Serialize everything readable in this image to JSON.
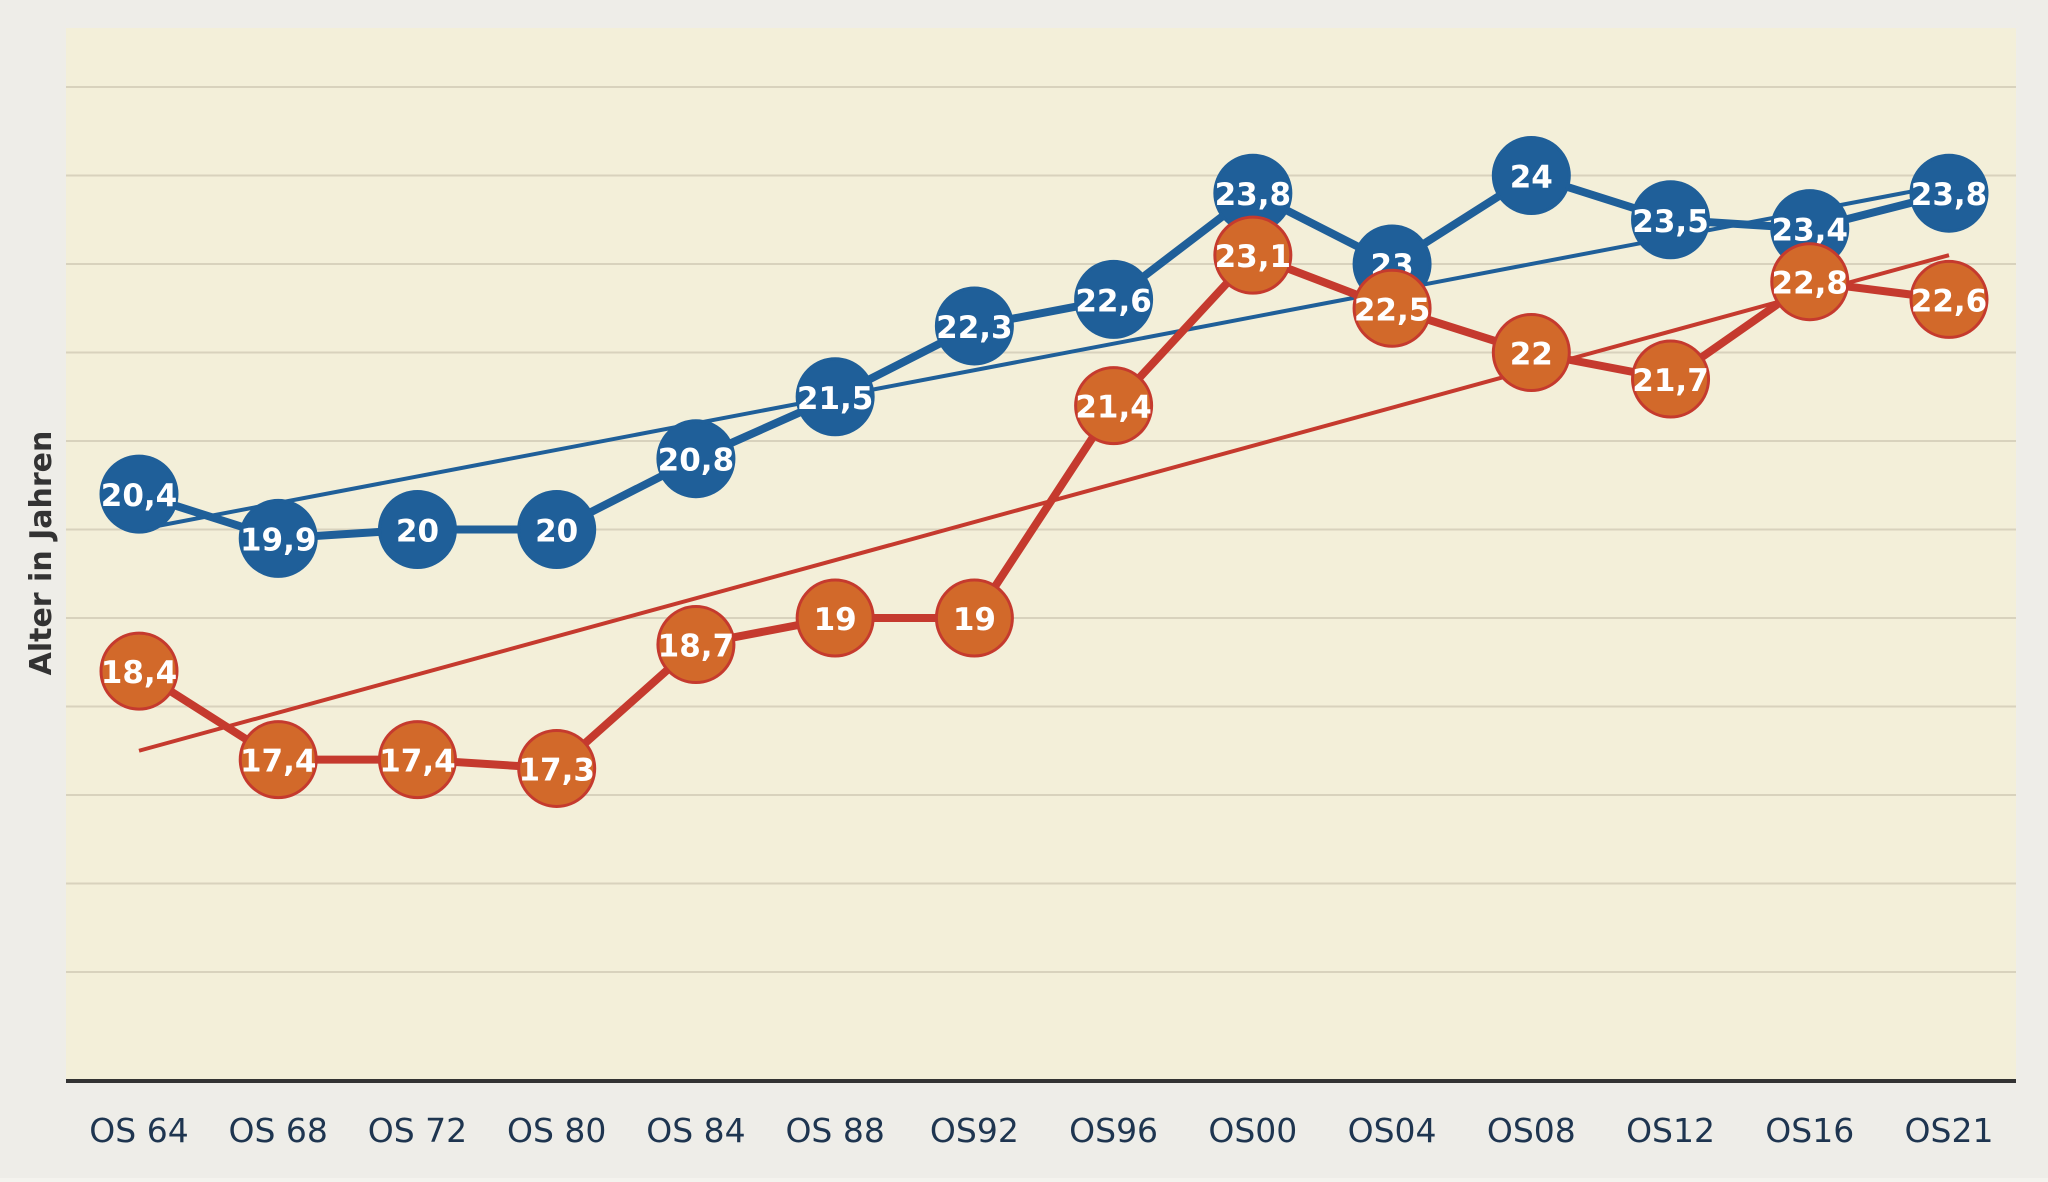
{
  "chart_data": {
    "type": "line",
    "title": "",
    "xlabel": "",
    "ylabel": "Alter in Jahren",
    "categories": [
      "OS 64",
      "OS 68",
      "OS 72",
      "OS 80",
      "OS 84",
      "OS 88",
      "OS92",
      "OS96",
      "OS00",
      "OS04",
      "OS08",
      "OS12",
      "OS16",
      "OS21"
    ],
    "ylim": [
      15,
      25
    ],
    "grid": true,
    "legend": "none",
    "series": [
      {
        "color": "#1f5f99",
        "values": [
          20.4,
          19.9,
          20,
          20,
          20.8,
          21.5,
          22.3,
          22.6,
          23.8,
          23,
          24,
          23.5,
          23.4,
          23.8
        ],
        "labels": [
          "20,4",
          "19,9",
          "20",
          "20",
          "20,8",
          "21,5",
          "22,3",
          "22,6",
          "23,8",
          "23",
          "24",
          "23,5",
          "23,4",
          "23,8"
        ],
        "trend": [
          20.0,
          23.9
        ]
      },
      {
        "color": "#d2692a",
        "line_color": "#c53a2e",
        "values": [
          18.4,
          17.4,
          17.4,
          17.3,
          18.7,
          19,
          19,
          21.4,
          23.1,
          22.5,
          22,
          21.7,
          22.8,
          22.6
        ],
        "labels": [
          "18,4",
          "17,4",
          "17,4",
          "17,3",
          "18,7",
          "19",
          "19",
          "21,4",
          "23,1",
          "22,5",
          "22",
          "21,7",
          "22,8",
          "22,6"
        ],
        "trend": [
          17.5,
          23.1
        ]
      }
    ]
  },
  "colors": {
    "plot_bg": "#f3efd9",
    "grid": "#d8d2bd",
    "axis": "#333333",
    "label_text": "#ffffff",
    "tick_text": "#1e3550"
  }
}
